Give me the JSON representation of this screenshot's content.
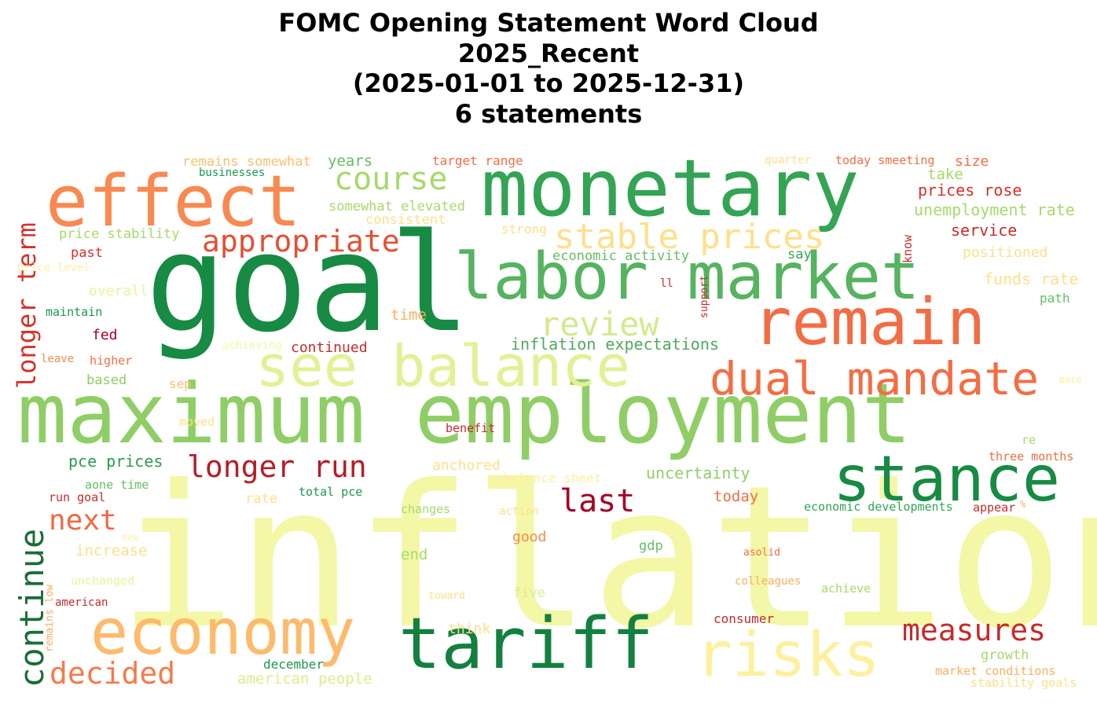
{
  "title": {
    "line1": "FOMC Opening Statement Word Cloud",
    "line2": "2025_Recent",
    "line3": "(2025-01-01 to 2025-12-31)",
    "line4": "6 statements"
  },
  "words": [
    {
      "text": "inflation",
      "color": "#f3f7a6"
    },
    {
      "text": "goal",
      "color": "#178a44"
    },
    {
      "text": "maximum employment",
      "color": "#8fce66"
    },
    {
      "text": "monetary",
      "color": "#33a454"
    },
    {
      "text": "labor market",
      "color": "#56b360"
    },
    {
      "text": "remain",
      "color": "#f36c44"
    },
    {
      "text": "effect",
      "color": "#f88950"
    },
    {
      "text": "see balance",
      "color": "#e2f195"
    },
    {
      "text": "stance",
      "color": "#178a44"
    },
    {
      "text": "tariff",
      "color": "#148040"
    },
    {
      "text": "economy",
      "color": "#fdba6b"
    },
    {
      "text": "risks",
      "color": "#fdf1a0"
    },
    {
      "text": "dual mandate",
      "color": "#f46d43"
    },
    {
      "text": "stable prices",
      "color": "#fee08b"
    },
    {
      "text": "review",
      "color": "#d2ea8c"
    },
    {
      "text": "appropriate",
      "color": "#e34f33"
    },
    {
      "text": "course",
      "color": "#a6d96a"
    },
    {
      "text": "longer run",
      "color": "#b71c28"
    },
    {
      "text": "last",
      "color": "#a50026"
    },
    {
      "text": "measures",
      "color": "#c62b2b"
    },
    {
      "text": "next",
      "color": "#f26841"
    },
    {
      "text": "decided",
      "color": "#f57a4a"
    },
    {
      "text": "continue",
      "color": "#1a6d36"
    },
    {
      "text": "longer term",
      "color": "#d73027"
    },
    {
      "text": "inflation expectations",
      "color": "#4eaa5c"
    },
    {
      "text": "uncertainty",
      "color": "#8fce66"
    },
    {
      "text": "pce prices",
      "color": "#2b9b4f"
    },
    {
      "text": "prices rose",
      "color": "#d73027"
    },
    {
      "text": "unemployment rate",
      "color": "#a6d96a"
    },
    {
      "text": "service",
      "color": "#c62b2b"
    },
    {
      "text": "somewhat elevated",
      "color": "#a6d96a"
    },
    {
      "text": "economic activity",
      "color": "#66bd63"
    },
    {
      "text": "price stability",
      "color": "#a6d96a"
    },
    {
      "text": "remains somewhat",
      "color": "#fdbf6f"
    },
    {
      "text": "businesses",
      "color": "#1a9850"
    },
    {
      "text": "years",
      "color": "#66bd63"
    },
    {
      "text": "target range",
      "color": "#f46d43"
    },
    {
      "text": "quarter",
      "color": "#fee08b"
    },
    {
      "text": "today smeeting",
      "color": "#f46d43"
    },
    {
      "text": "size",
      "color": "#f46d43"
    },
    {
      "text": "take",
      "color": "#a6d96a"
    },
    {
      "text": "consistent",
      "color": "#fee08b"
    },
    {
      "text": "strong",
      "color": "#fee08b"
    },
    {
      "text": "past",
      "color": "#d73027"
    },
    {
      "text": "price level",
      "color": "#fef0a0"
    },
    {
      "text": "overall",
      "color": "#e6f598"
    },
    {
      "text": "maintain",
      "color": "#1a9850"
    },
    {
      "text": "fed",
      "color": "#a50026"
    },
    {
      "text": "achieving",
      "color": "#f3f7a6"
    },
    {
      "text": "continued",
      "color": "#c62b2b"
    },
    {
      "text": "time",
      "color": "#fdae61"
    },
    {
      "text": "leave",
      "color": "#f88950"
    },
    {
      "text": "higher",
      "color": "#f46d43"
    },
    {
      "text": "based",
      "color": "#8fce66"
    },
    {
      "text": "sep",
      "color": "#fdbf6f"
    },
    {
      "text": "moved",
      "color": "#fee08b"
    },
    {
      "text": "benefit",
      "color": "#c62b2b"
    },
    {
      "text": "anchored",
      "color": "#fee08b"
    },
    {
      "text": "balance sheet",
      "color": "#fef0a0"
    },
    {
      "text": "say",
      "color": "#33a454"
    },
    {
      "text": "positioned",
      "color": "#fee08b"
    },
    {
      "text": "funds rate",
      "color": "#fee08b"
    },
    {
      "text": "path",
      "color": "#66bd63"
    },
    {
      "text": "ll",
      "color": "#c62b2b"
    },
    {
      "text": "support",
      "color": "#c62b2b"
    },
    {
      "text": "know",
      "color": "#c62b2b"
    },
    {
      "text": "pace",
      "color": "#fef0a0"
    },
    {
      "text": "re",
      "color": "#a6d96a"
    },
    {
      "text": "three months",
      "color": "#f46d43"
    },
    {
      "text": "aone time",
      "color": "#66bd63"
    },
    {
      "text": "run goal",
      "color": "#c62b2b"
    },
    {
      "text": "rate",
      "color": "#fee08b"
    },
    {
      "text": "total pce",
      "color": "#1a9850"
    },
    {
      "text": "changes",
      "color": "#a6d96a"
    },
    {
      "text": "action",
      "color": "#fee08b"
    },
    {
      "text": "today",
      "color": "#f46d43"
    },
    {
      "text": "economic developments",
      "color": "#33a454"
    },
    {
      "text": "appear",
      "color": "#c62b2b"
    },
    {
      "text": "new",
      "color": "#fef0a0"
    },
    {
      "text": "increase",
      "color": "#fee08b"
    },
    {
      "text": "good",
      "color": "#f88950"
    },
    {
      "text": "end",
      "color": "#a6d96a"
    },
    {
      "text": "gdp",
      "color": "#66bd63"
    },
    {
      "text": "asolid",
      "color": "#f46d43"
    },
    {
      "text": "unchanged",
      "color": "#e6f598"
    },
    {
      "text": "remains low",
      "color": "#fdae61"
    },
    {
      "text": "american",
      "color": "#c62b2b"
    },
    {
      "text": "toward",
      "color": "#fee08b"
    },
    {
      "text": "five",
      "color": "#d9ef8b"
    },
    {
      "text": "colleagues",
      "color": "#fdae61"
    },
    {
      "text": "achieve",
      "color": "#a6d96a"
    },
    {
      "text": "think",
      "color": "#fee08b"
    },
    {
      "text": "consumer",
      "color": "#c62b2b"
    },
    {
      "text": "growth",
      "color": "#a6d96a"
    },
    {
      "text": "december",
      "color": "#1a9850"
    },
    {
      "text": "american people",
      "color": "#d9ef8b"
    },
    {
      "text": "market conditions",
      "color": "#fdae61"
    },
    {
      "text": "stability goals",
      "color": "#fee08b"
    },
    {
      "text": "%",
      "color": "#fdae61"
    }
  ]
}
